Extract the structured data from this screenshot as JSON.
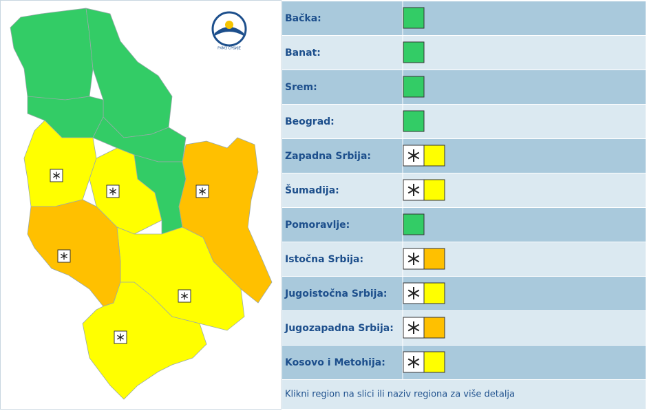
{
  "logo": "РХМЗ СРБИЈЕ",
  "regions": [
    {
      "name": "Bačka:",
      "color": "#33cc66",
      "snow": false
    },
    {
      "name": "Banat:",
      "color": "#33cc66",
      "snow": false
    },
    {
      "name": "Srem:",
      "color": "#33cc66",
      "snow": false
    },
    {
      "name": "Beograd:",
      "color": "#33cc66",
      "snow": false
    },
    {
      "name": "Zapadna Srbija:",
      "color": "#ffff00",
      "snow": true
    },
    {
      "name": "Šumadija:",
      "color": "#ffff00",
      "snow": true
    },
    {
      "name": "Pomoravlje:",
      "color": "#33cc66",
      "snow": false
    },
    {
      "name": "Istočna Srbija:",
      "color": "#ffc000",
      "snow": true
    },
    {
      "name": "Jugoistočna Srbija:",
      "color": "#ffff00",
      "snow": true
    },
    {
      "name": "Jugozapadna Srbija:",
      "color": "#ffc000",
      "snow": true
    },
    {
      "name": "Kosovo i Metohija:",
      "color": "#ffff00",
      "snow": true
    }
  ],
  "footer": "Klikni region na slici ili naziv regiona za više detalja"
}
